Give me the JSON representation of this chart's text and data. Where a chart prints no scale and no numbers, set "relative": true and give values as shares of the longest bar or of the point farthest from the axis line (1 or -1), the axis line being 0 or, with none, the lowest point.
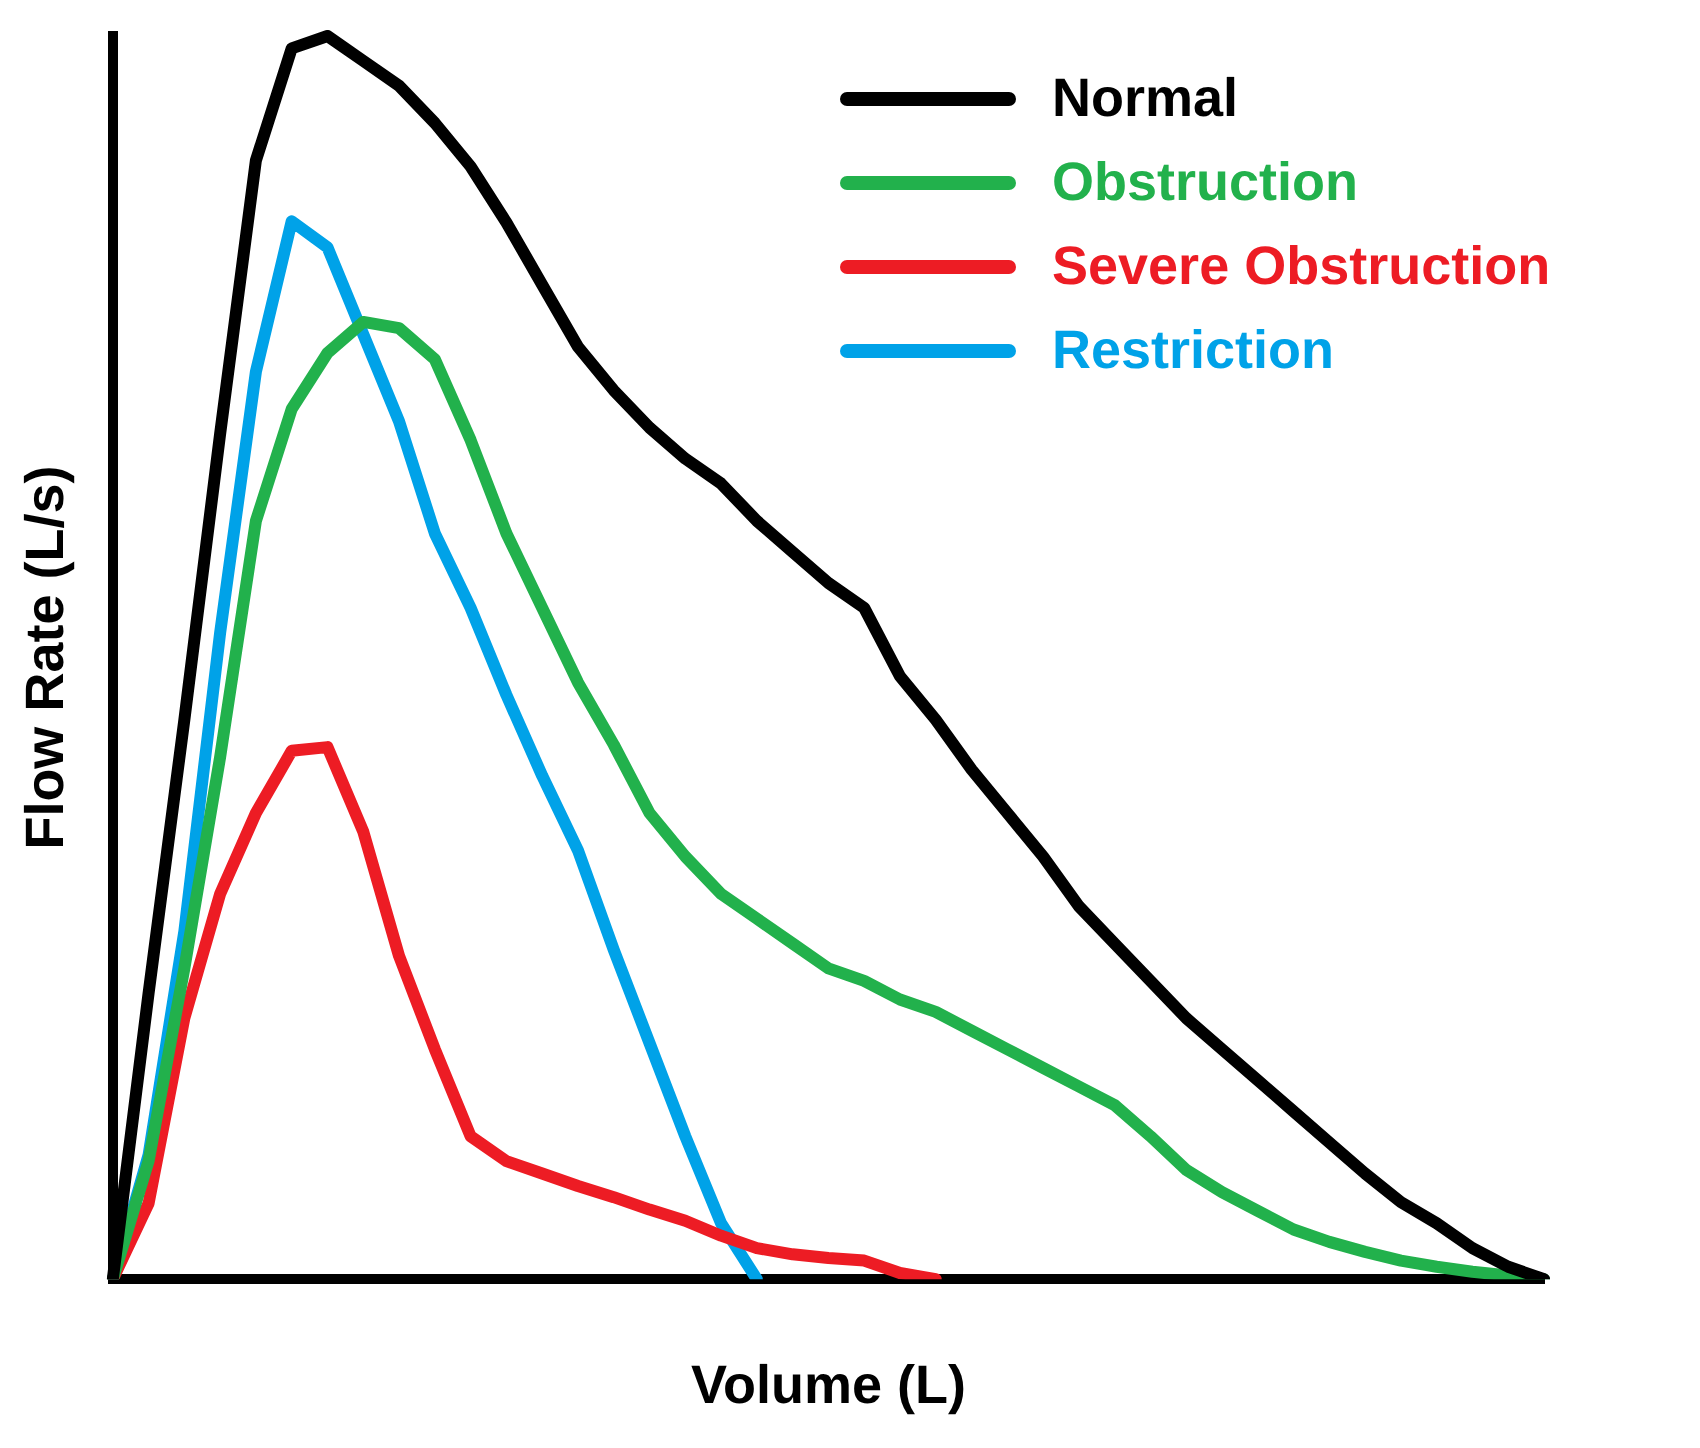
{
  "chart_data": {
    "type": "line",
    "relative": true,
    "xlabel": "Volume (L)",
    "ylabel": "Flow Rate (L/s)",
    "legend": "top right",
    "grid": false,
    "marker": "none",
    "line_style": "solid",
    "categories": [
      null,
      null,
      null,
      null,
      null,
      null,
      null,
      null,
      null,
      null,
      null,
      null,
      null,
      null,
      null,
      null,
      null,
      null,
      null,
      null,
      null,
      null,
      null,
      null,
      null,
      null,
      null,
      null,
      null,
      null,
      null,
      null,
      null,
      null,
      null,
      null,
      null,
      null,
      null,
      null,
      null
    ],
    "series": [
      {
        "name": "Normal",
        "color": "#000000",
        "values": [
          0,
          0.23,
          0.45,
          0.68,
          0.9,
          0.99,
          1.0,
          0.98,
          0.96,
          0.93,
          0.895,
          0.85,
          0.8,
          0.75,
          0.715,
          0.685,
          0.66,
          0.64,
          0.61,
          0.585,
          0.56,
          0.54,
          0.485,
          0.45,
          0.41,
          0.375,
          0.34,
          0.3,
          0.27,
          0.24,
          0.21,
          0.185,
          0.16,
          0.135,
          0.11,
          0.085,
          0.062,
          0.045,
          0.025,
          0.01,
          0
        ]
      },
      {
        "name": "Obstruction",
        "color": "#22b14c",
        "values": [
          0,
          0.095,
          0.25,
          0.42,
          0.61,
          0.7,
          0.745,
          0.77,
          0.765,
          0.74,
          0.675,
          0.6,
          0.54,
          0.48,
          0.43,
          0.375,
          0.34,
          0.31,
          0.29,
          0.27,
          0.25,
          0.24,
          0.225,
          0.215,
          0.2,
          0.185,
          0.17,
          0.155,
          0.14,
          0.115,
          0.088,
          0.07,
          0.055,
          0.04,
          0.03,
          0.022,
          0.015,
          0.01,
          0.006,
          0.003,
          0
        ]
      },
      {
        "name": "Severe Obstruction",
        "color": "#ed1c24",
        "values": [
          0,
          0.061,
          0.21,
          0.31,
          0.375,
          0.425,
          0.428,
          0.36,
          0.26,
          0.185,
          0.115,
          0.095,
          0.085,
          0.075,
          0.066,
          0.056,
          0.047,
          0.035,
          0.025,
          0.02,
          0.017,
          0.015,
          0.005,
          0,
          null,
          null,
          null,
          null,
          null,
          null,
          null,
          null,
          null,
          null,
          null,
          null,
          null,
          null,
          null,
          null,
          null
        ]
      },
      {
        "name": "Restriction",
        "color": "#00a2e8",
        "values": [
          0,
          0.1,
          0.28,
          0.52,
          0.73,
          0.851,
          0.83,
          0.76,
          0.69,
          0.6,
          0.54,
          0.47,
          0.405,
          0.345,
          0.265,
          0.19,
          0.115,
          0.045,
          0,
          null,
          null,
          null,
          null,
          null,
          null,
          null,
          null,
          null,
          null,
          null,
          null,
          null,
          null,
          null,
          null,
          null,
          null,
          null,
          null,
          null,
          null
        ]
      }
    ]
  }
}
